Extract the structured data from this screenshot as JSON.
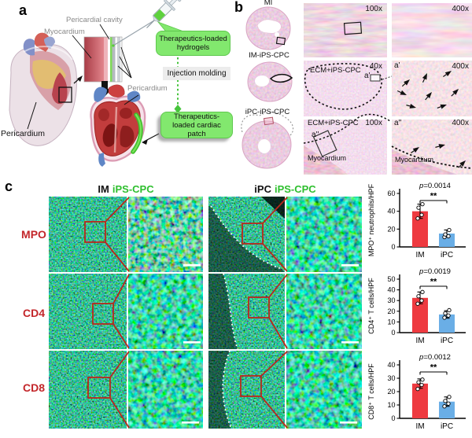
{
  "figure": {
    "panel_a_letter": "a",
    "panel_b_letter": "b",
    "panel_c_letter": "c"
  },
  "panel_a": {
    "labels": {
      "pericardial_cavity": "Pericardial cavity",
      "myocardium": "Myocardium",
      "pericardium_left": "Pericardium",
      "pericardium_right": "Pericardium",
      "hydrogels": "Therapeutics-loaded hydrogels",
      "injection_molding": "Injection molding",
      "cardiac_patch": "Therapeutics-loaded cardiac patch"
    },
    "colors": {
      "bubble_green": "#82e86e",
      "flow_green": "#46c43c"
    }
  },
  "panel_b": {
    "sections": [
      {
        "label": "MI"
      },
      {
        "label": "IM-iPS-CPC"
      },
      {
        "label": "iPC-iPS-CPC"
      }
    ],
    "micrographs": {
      "r1_mid_mag": "100x",
      "r1_right_mag": "400x",
      "r2_mid_mag": "40x",
      "r2_mid_region": "ECM+iPS-CPC",
      "r2_mid_inset": "a'",
      "r2_right_label": "a'",
      "r2_right_mag": "400x",
      "r3_mid_mag": "100x",
      "r3_mid_region": "ECM+iPS-CPC",
      "r3_mid_inset": "a''",
      "r3_mid_tissue": "Myocardium",
      "r3_right_label": "a''",
      "r3_right_mag": "400x",
      "r3_right_tissue": "Myocardium"
    }
  },
  "panel_c": {
    "headers": [
      {
        "prefix": "IM",
        "suffix": "iPS-CPC"
      },
      {
        "prefix": "iPC",
        "suffix": "iPS-CPC"
      }
    ],
    "rows": [
      {
        "label": "MPO"
      },
      {
        "label": "CD4"
      },
      {
        "label": "CD8"
      }
    ],
    "accent_green": "#2ebf2e",
    "label_red": "#c3262a"
  },
  "chart_data": [
    {
      "type": "bar",
      "categories": [
        "IM",
        "iPC"
      ],
      "values": [
        40,
        15
      ],
      "error": [
        8,
        4
      ],
      "points": [
        [
          32,
          36,
          44,
          48
        ],
        [
          11,
          12,
          14,
          19
        ]
      ],
      "p": "0.0014",
      "significance": "**",
      "ylabel": "MPO⁺ neutrophils/HPF",
      "ylim": [
        0,
        60
      ],
      "yticks": [
        0,
        20,
        40,
        60
      ],
      "bar_colors": [
        "#ee3a40",
        "#6aaee6"
      ],
      "legend": "none",
      "grid": false
    },
    {
      "type": "bar",
      "categories": [
        "IM",
        "iPC"
      ],
      "values": [
        32.5,
        17
      ],
      "error": [
        5.5,
        3.5
      ],
      "points": [
        [
          27,
          30,
          34,
          38
        ],
        [
          14,
          16,
          18,
          21
        ]
      ],
      "p": "0.0019",
      "significance": "**",
      "ylabel": "CD4⁺ T cells/HPF",
      "ylim": [
        0,
        50
      ],
      "yticks": [
        0,
        10,
        20,
        30,
        40,
        50
      ],
      "bar_colors": [
        "#ee3a40",
        "#6aaee6"
      ],
      "legend": "none",
      "grid": false
    },
    {
      "type": "bar",
      "categories": [
        "IM",
        "iPC"
      ],
      "values": [
        26,
        12.5
      ],
      "error": [
        3.5,
        3.5
      ],
      "points": [
        [
          22,
          25,
          27,
          29
        ],
        [
          9,
          11,
          13,
          16
        ]
      ],
      "p": "0.0012",
      "significance": "**",
      "ylabel": "CD8⁺ T cells/HPF",
      "ylim": [
        0,
        40
      ],
      "yticks": [
        0,
        10,
        20,
        30,
        40
      ],
      "bar_colors": [
        "#ee3a40",
        "#6aaee6"
      ],
      "legend": "none",
      "grid": false
    }
  ]
}
